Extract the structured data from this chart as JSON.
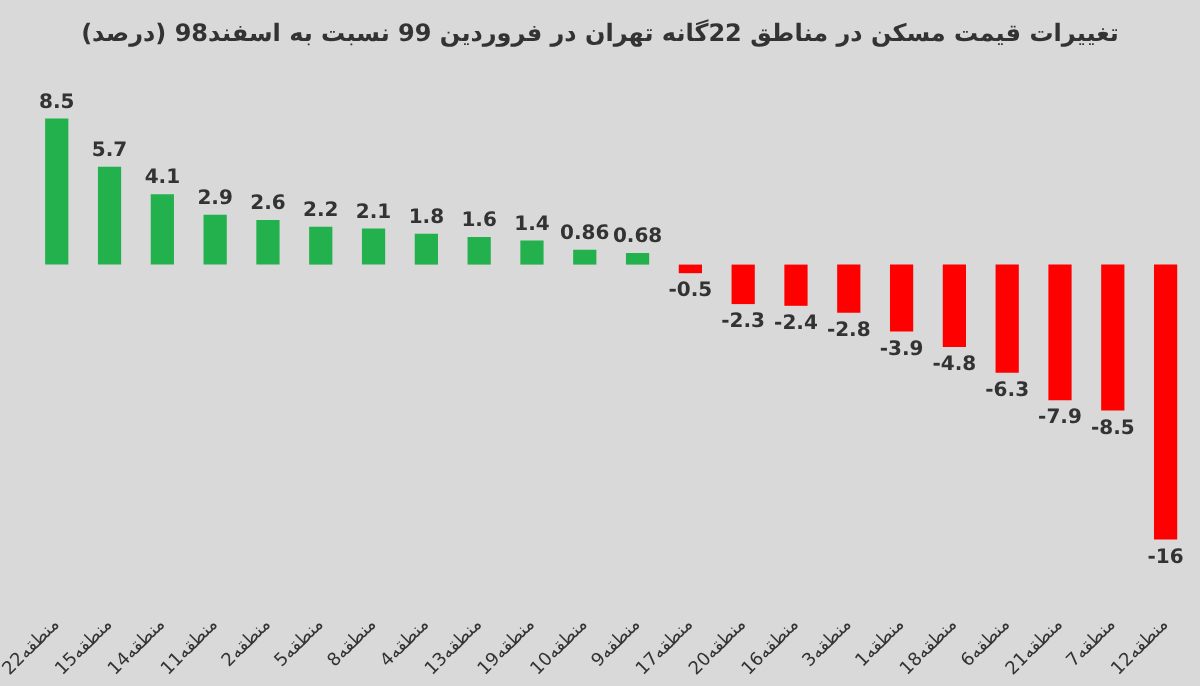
{
  "chart_data": {
    "type": "bar",
    "title": "تغییرات قیمت مسکن در مناطق 22گانه تهران در فروردین 99 نسبت به اسفند98 (درصد)",
    "categories": [
      "منطقه22",
      "منطقه15",
      "منطقه14",
      "منطقه11",
      "منطقه2",
      "منطقه5",
      "منطقه8",
      "منطقه4",
      "منطقه13",
      "منطقه19",
      "منطقه10",
      "منطقه9",
      "منطقه17",
      "منطقه20",
      "منطقه16",
      "منطقه3",
      "منطقه1",
      "منطقه18",
      "منطقه6",
      "منطقه21",
      "منطقه7",
      "منطقه12"
    ],
    "values": [
      8.5,
      5.7,
      4.1,
      2.9,
      2.6,
      2.2,
      2.1,
      1.8,
      1.6,
      1.4,
      0.86,
      0.68,
      -0.5,
      -2.3,
      -2.4,
      -2.8,
      -3.9,
      -4.8,
      -6.3,
      -7.9,
      -8.5,
      -16
    ],
    "colors": [
      "#22b14c",
      "#22b14c",
      "#22b14c",
      "#22b14c",
      "#22b14c",
      "#22b14c",
      "#22b14c",
      "#22b14c",
      "#22b14c",
      "#22b14c",
      "#22b14c",
      "#22b14c",
      "#ff0000",
      "#ff0000",
      "#ff0000",
      "#ff0000",
      "#ff0000",
      "#ff0000",
      "#ff0000",
      "#ff0000",
      "#ff0000",
      "#ff0000"
    ],
    "data_labels": true,
    "grid": false,
    "legend": false
  }
}
